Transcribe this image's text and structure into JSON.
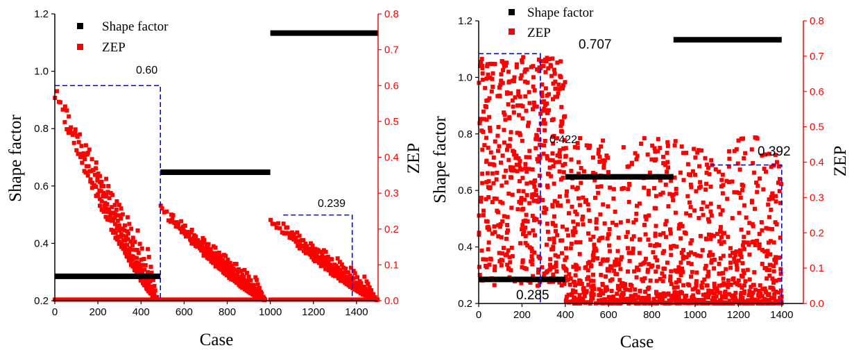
{
  "chart_data": [
    {
      "type": "scatter",
      "panel": "left",
      "xlabel": "Case",
      "ylabel": "Shape factor",
      "y2label": "ZEP",
      "xlim": [
        0,
        1500
      ],
      "ylim": [
        0.2,
        1.2
      ],
      "y2lim": [
        0,
        0.8
      ],
      "xticks": [
        "0",
        "200",
        "400",
        "600",
        "800",
        "1000",
        "1200",
        "1400"
      ],
      "yticks": [
        "0.2",
        "0.4",
        "0.6",
        "0.8",
        "1.0",
        "1.2"
      ],
      "y2ticks": [
        "0.0",
        "0.1",
        "0.2",
        "0.3",
        "0.4",
        "0.5",
        "0.6",
        "0.7",
        "0.8"
      ],
      "legend": [
        "Shape factor",
        "ZEP"
      ],
      "legend_position": "top-left",
      "colors": {
        "shape_factor": "#000000",
        "zep": "#ff0000",
        "guides": "#0000ff"
      },
      "series": [
        {
          "name": "Shape factor",
          "axis": "left",
          "segments": [
            {
              "x": [
                0,
                490
              ],
              "y": 0.285
            },
            {
              "x": [
                490,
                1000
              ],
              "y": 0.648
            },
            {
              "x": [
                1000,
                1500
              ],
              "y": 1.133
            }
          ]
        },
        {
          "name": "ZEP",
          "axis": "right",
          "groups": [
            {
              "x": [
                0,
                480
              ],
              "max_start": 0.6,
              "stripes": 10
            },
            {
              "x": [
                490,
                980
              ],
              "max_start": 0.27,
              "stripes": 10
            },
            {
              "x": [
                1000,
                1500
              ],
              "max_start": 0.239,
              "stripes": 8
            }
          ]
        }
      ],
      "guides": [
        {
          "label": "0.60",
          "x": 490,
          "y2": 0.6
        },
        {
          "label": "0.239",
          "x": 1380,
          "y2": 0.239,
          "x_start": 1060
        }
      ]
    },
    {
      "type": "scatter",
      "panel": "right",
      "xlabel": "Case",
      "ylabel": "Shape factor",
      "y2label": "ZEP",
      "xlim": [
        0,
        1500
      ],
      "ylim": [
        0.2,
        1.2
      ],
      "y2lim": [
        0,
        0.8
      ],
      "xticks": [
        "0",
        "200",
        "400",
        "600",
        "800",
        "1000",
        "1200",
        "1400"
      ],
      "yticks": [
        "0.2",
        "0.4",
        "0.6",
        "0.8",
        "1.0",
        "1.2"
      ],
      "y2ticks": [
        "0.0",
        "0.1",
        "0.2",
        "0.3",
        "0.4",
        "0.5",
        "0.6",
        "0.7",
        "0.8"
      ],
      "legend": [
        "Shape factor",
        "ZEP"
      ],
      "legend_position": "top-left",
      "series": [
        {
          "name": "Shape factor",
          "axis": "left",
          "segments": [
            {
              "x": [
                0,
                400
              ],
              "y": 0.285
            },
            {
              "x": [
                400,
                900
              ],
              "y": 0.648
            },
            {
              "x": [
                900,
                1400
              ],
              "y": 1.133
            }
          ]
        },
        {
          "name": "ZEP",
          "axis": "right",
          "groups": [
            {
              "x": [
                0,
                400
              ],
              "range": [
                0.05,
                0.7
              ]
            },
            {
              "x": [
                400,
                1400
              ],
              "range": [
                0.0,
                0.47
              ]
            }
          ]
        }
      ],
      "guides": [
        {
          "label": "0.707",
          "x": 285,
          "y2": 0.707
        },
        {
          "label": "0.392",
          "x": 1400,
          "y2": 0.392,
          "x_start": 1070
        }
      ],
      "annotations": [
        {
          "label": "0.422"
        },
        {
          "label": "0.285"
        }
      ]
    }
  ]
}
